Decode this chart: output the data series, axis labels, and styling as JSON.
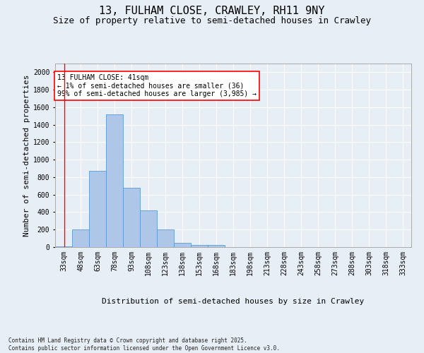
{
  "title_line1": "13, FULHAM CLOSE, CRAWLEY, RH11 9NY",
  "title_line2": "Size of property relative to semi-detached houses in Crawley",
  "xlabel": "Distribution of semi-detached houses by size in Crawley",
  "ylabel": "Number of semi-detached properties",
  "annotation_title": "13 FULHAM CLOSE: 41sqm",
  "annotation_line2": "← 1% of semi-detached houses are smaller (36)",
  "annotation_line3": "99% of semi-detached houses are larger (3,985) →",
  "footnote": "Contains HM Land Registry data © Crown copyright and database right 2025.\nContains public sector information licensed under the Open Government Licence v3.0.",
  "bin_labels": [
    "33sqm",
    "48sqm",
    "63sqm",
    "78sqm",
    "93sqm",
    "108sqm",
    "123sqm",
    "138sqm",
    "153sqm",
    "168sqm",
    "183sqm",
    "198sqm",
    "213sqm",
    "228sqm",
    "243sqm",
    "258sqm",
    "273sqm",
    "288sqm",
    "303sqm",
    "318sqm",
    "333sqm"
  ],
  "bin_edges": [
    33,
    48,
    63,
    78,
    93,
    108,
    123,
    138,
    153,
    168,
    183,
    198,
    213,
    228,
    243,
    258,
    273,
    288,
    303,
    318,
    333,
    348
  ],
  "bar_heights": [
    10,
    200,
    870,
    1520,
    680,
    420,
    200,
    50,
    25,
    25,
    0,
    0,
    0,
    0,
    0,
    0,
    0,
    0,
    0,
    0,
    0
  ],
  "bar_color": "#aec6e8",
  "bar_edge_color": "#5b9bd5",
  "ylim": [
    0,
    2100
  ],
  "yticks": [
    0,
    200,
    400,
    600,
    800,
    1000,
    1200,
    1400,
    1600,
    1800,
    2000
  ],
  "bg_color": "#e8eef5",
  "plot_bg_color": "#e8eef5",
  "grid_color": "#ffffff",
  "title_fontsize": 11,
  "subtitle_fontsize": 9,
  "axis_label_fontsize": 8,
  "tick_fontsize": 7,
  "annotation_fontsize": 7,
  "footnote_fontsize": 5.5
}
